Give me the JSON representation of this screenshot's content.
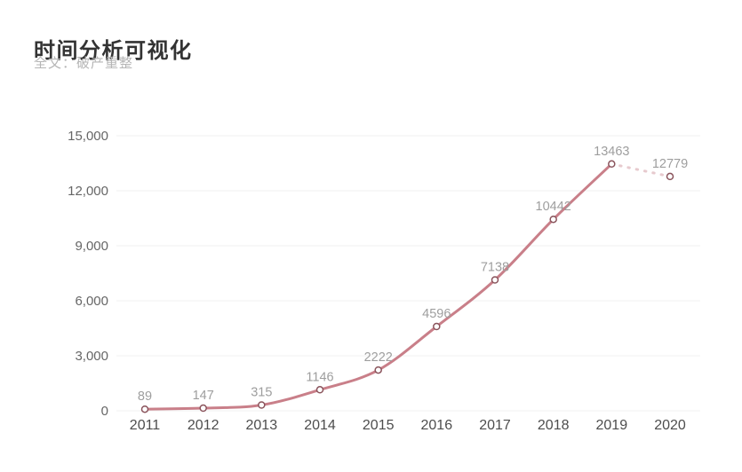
{
  "page": {
    "title": "时间分析可视化",
    "subtitle": "全文：破产重整"
  },
  "chart_data": {
    "type": "line",
    "title": "时间分析可视化",
    "subtitle": "全文：破产重整",
    "x": [
      "2011",
      "2012",
      "2013",
      "2014",
      "2015",
      "2016",
      "2017",
      "2018",
      "2019",
      "2020"
    ],
    "series": [
      {
        "name": "破产重整",
        "values": [
          89,
          147,
          315,
          1146,
          2222,
          4596,
          7138,
          10442,
          13463,
          12779
        ]
      }
    ],
    "point_labels": [
      "89",
      "147",
      "315",
      "1146",
      "2222",
      "4596",
      "7138",
      "10442",
      "13463",
      "12779"
    ],
    "solid_until_index": 8,
    "dashed_segment": {
      "from": "2019",
      "to": "2020",
      "style": "dotted"
    },
    "xlabel": "",
    "ylabel": "",
    "ylim": [
      0,
      15000
    ],
    "yticks": [
      0,
      3000,
      6000,
      9000,
      12000,
      15000
    ],
    "ytick_labels": [
      "0",
      "3,000",
      "6,000",
      "9,000",
      "12,000",
      "15,000"
    ],
    "grid": true,
    "legend": "none",
    "smooth": true,
    "colors": {
      "line": "#c97f89",
      "forecast_dash": "#e7cace",
      "marker_fill": "#ffffff",
      "marker_stroke": "#8a545c",
      "grid": "#f0f0f0",
      "point_label_text": "#9e9e9e",
      "y_axis_text": "#666666",
      "x_axis_text": "#4d4d4d"
    }
  }
}
